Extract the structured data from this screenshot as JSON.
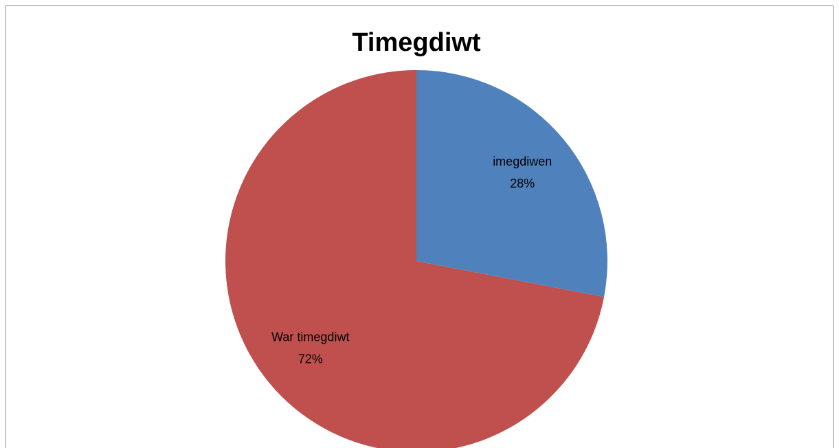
{
  "chart_data": {
    "type": "pie",
    "title": "Timegdiwt",
    "categories": [
      "imegdiwen",
      "War timegdiwt"
    ],
    "values": [
      28,
      72
    ],
    "value_labels": [
      "28%",
      "72%"
    ],
    "colors": [
      "#4f81bd",
      "#c0504d"
    ]
  }
}
